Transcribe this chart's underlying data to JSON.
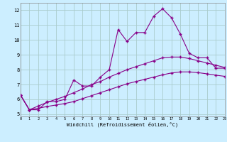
{
  "xlabel": "Windchill (Refroidissement éolien,°C)",
  "background_color": "#cceeff",
  "grid_color": "#aacccc",
  "line_color": "#880088",
  "x_ticks": [
    0,
    1,
    2,
    3,
    4,
    5,
    6,
    7,
    8,
    9,
    10,
    11,
    12,
    13,
    14,
    15,
    16,
    17,
    18,
    19,
    20,
    21,
    22,
    23
  ],
  "y_ticks": [
    5,
    6,
    7,
    8,
    9,
    10,
    11,
    12
  ],
  "xlim": [
    0,
    23
  ],
  "ylim": [
    4.85,
    12.5
  ],
  "jagged_x": [
    0,
    1,
    2,
    3,
    4,
    5,
    6,
    7,
    8,
    9,
    10,
    11,
    12,
    13,
    14,
    15,
    16,
    17,
    18,
    19,
    20,
    21,
    22,
    23
  ],
  "jagged_y": [
    6.3,
    5.3,
    5.3,
    5.85,
    5.85,
    6.0,
    7.3,
    6.9,
    6.9,
    7.5,
    8.0,
    10.7,
    9.9,
    10.5,
    10.5,
    11.6,
    12.1,
    11.5,
    10.4,
    9.1,
    8.8,
    8.8,
    8.1,
    8.1
  ],
  "smooth_upper_x": [
    0,
    1,
    2,
    3,
    4,
    5,
    6,
    7,
    8,
    9,
    10,
    11,
    12,
    13,
    14,
    15,
    16,
    17,
    18,
    19,
    20,
    21,
    22,
    23
  ],
  "smooth_upper_y": [
    6.3,
    5.3,
    5.55,
    5.8,
    6.0,
    6.2,
    6.45,
    6.7,
    7.0,
    7.2,
    7.5,
    7.75,
    8.0,
    8.2,
    8.4,
    8.6,
    8.8,
    8.85,
    8.85,
    8.75,
    8.6,
    8.45,
    8.3,
    8.15
  ],
  "smooth_lower_x": [
    0,
    1,
    2,
    3,
    4,
    5,
    6,
    7,
    8,
    9,
    10,
    11,
    12,
    13,
    14,
    15,
    16,
    17,
    18,
    19,
    20,
    21,
    22,
    23
  ],
  "smooth_lower_y": [
    6.3,
    5.3,
    5.4,
    5.52,
    5.62,
    5.72,
    5.85,
    6.05,
    6.25,
    6.45,
    6.65,
    6.85,
    7.05,
    7.2,
    7.35,
    7.5,
    7.65,
    7.78,
    7.85,
    7.85,
    7.8,
    7.72,
    7.63,
    7.55
  ]
}
